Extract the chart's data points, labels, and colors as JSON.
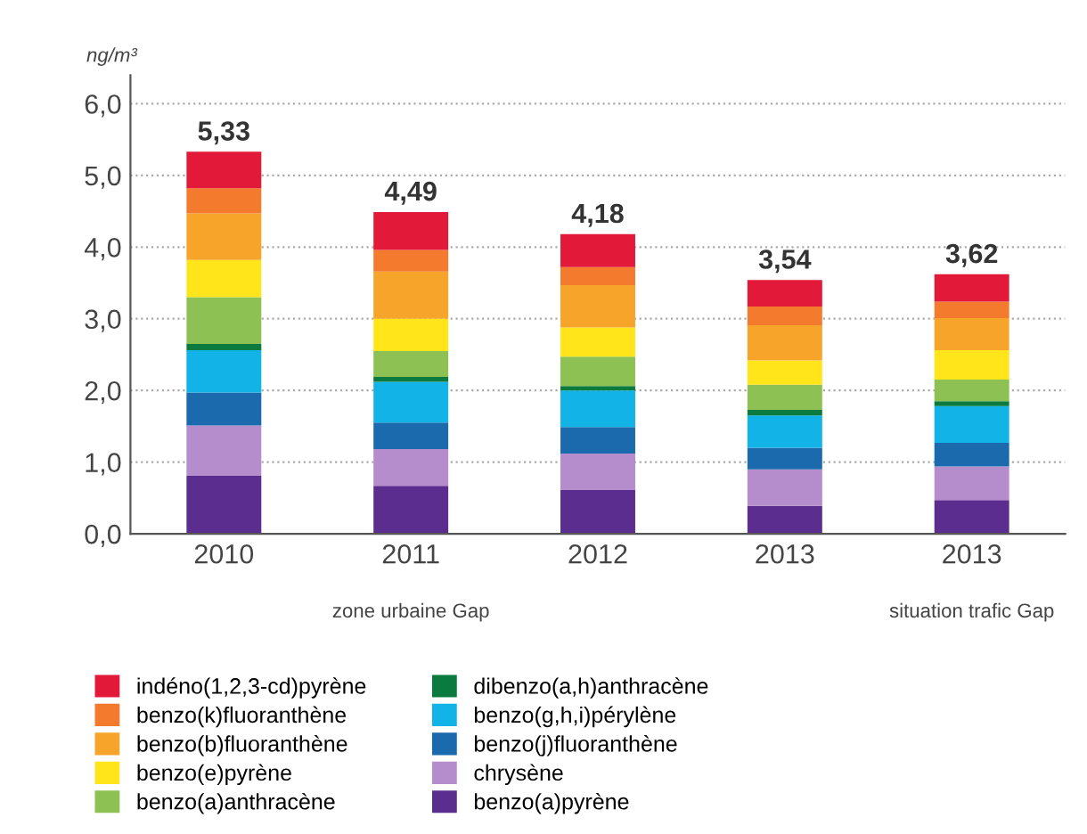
{
  "chart_data": {
    "type": "bar",
    "stacked": true,
    "ylabel": "ng/m³",
    "categories": [
      "2010",
      "2011",
      "2012",
      "2013",
      "2013"
    ],
    "series": [
      {
        "name": "benzo(a)pyrène",
        "color": "#5b2d8e",
        "values": [
          0.81,
          0.67,
          0.61,
          0.39,
          0.47
        ]
      },
      {
        "name": "chrysène",
        "color": "#b58ccc",
        "values": [
          0.7,
          0.51,
          0.51,
          0.51,
          0.47
        ]
      },
      {
        "name": "benzo(j)fluoranthène",
        "color": "#1a6aad",
        "values": [
          0.46,
          0.37,
          0.37,
          0.3,
          0.33
        ]
      },
      {
        "name": "benzo(g,h,i)pérylène",
        "color": "#12b4e8",
        "values": [
          0.59,
          0.57,
          0.51,
          0.45,
          0.51
        ]
      },
      {
        "name": "dibenzo(a,h)anthracène",
        "color": "#0a7a3e",
        "values": [
          0.09,
          0.07,
          0.06,
          0.08,
          0.07
        ]
      },
      {
        "name": "benzo(a)anthracène",
        "color": "#8dc153",
        "values": [
          0.65,
          0.36,
          0.41,
          0.35,
          0.3
        ]
      },
      {
        "name": "benzo(e)pyrène",
        "color": "#ffe51a",
        "values": [
          0.52,
          0.45,
          0.41,
          0.34,
          0.41
        ]
      },
      {
        "name": "benzo(b)fluoranthène",
        "color": "#f7a52a",
        "values": [
          0.65,
          0.66,
          0.59,
          0.49,
          0.45
        ]
      },
      {
        "name": "benzo(k)fluoranthène",
        "color": "#f47a2e",
        "values": [
          0.35,
          0.3,
          0.25,
          0.26,
          0.23
        ]
      },
      {
        "name": "indéno(1,2,3-cd)pyrène",
        "color": "#e3193a",
        "values": [
          0.51,
          0.53,
          0.46,
          0.37,
          0.38
        ]
      }
    ],
    "totals": [
      "5,33",
      "4,49",
      "4,18",
      "3,54",
      "3,62"
    ],
    "ylim": [
      0,
      6.4
    ],
    "yticks": [
      {
        "value": 0,
        "label": "0,0"
      },
      {
        "value": 1,
        "label": "1,0"
      },
      {
        "value": 2,
        "label": "2,0"
      },
      {
        "value": 3,
        "label": "3,0"
      },
      {
        "value": 4,
        "label": "4,0"
      },
      {
        "value": 5,
        "label": "5,0"
      },
      {
        "value": 6,
        "label": "6,0"
      }
    ],
    "grid": "y",
    "legend": "bottom",
    "annotations": [
      "zone urbaine Gap",
      "situation trafic Gap"
    ]
  }
}
